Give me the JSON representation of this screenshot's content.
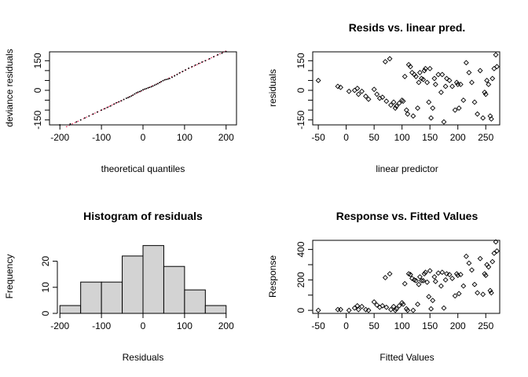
{
  "chart_data": [
    {
      "id": "qq",
      "type": "scatter",
      "title": "",
      "xlabel": "theoretical quantiles",
      "ylabel": "deviance residuals",
      "xlim": [
        -225,
        225
      ],
      "ylim": [
        -175,
        195
      ],
      "xticks": [
        -200,
        -100,
        0,
        100,
        200
      ],
      "yticks": [
        -150,
        -100,
        -50,
        0,
        50,
        100,
        150
      ],
      "yticklabels": [
        "-150",
        "",
        "",
        "0",
        "",
        "",
        "150"
      ],
      "reference_line": {
        "color": "#e0003a",
        "from": [
          -185,
          -185
        ],
        "to": [
          200,
          200
        ]
      },
      "series": [
        {
          "x": [
            -200,
            -175,
            -160,
            -150,
            -140,
            -130,
            -120,
            -110,
            -100,
            -92,
            -85,
            -78,
            -70,
            -64,
            -58,
            -52,
            -46,
            -40,
            -36,
            -32,
            -28,
            -24,
            -20,
            -16,
            -12,
            -8,
            -4,
            0,
            4,
            8,
            12,
            16,
            20,
            24,
            28,
            32,
            36,
            40,
            44,
            48,
            52,
            56,
            60,
            64,
            70,
            76,
            82,
            88,
            95,
            102,
            110,
            118,
            126,
            134,
            142,
            150,
            160,
            170,
            180,
            190,
            200
          ],
          "y": [
            -175,
            -170,
            -160,
            -150,
            -140,
            -130,
            -120,
            -110,
            -100,
            -93,
            -86,
            -79,
            -70,
            -63,
            -58,
            -53,
            -46,
            -40,
            -37,
            -33,
            -29,
            -24,
            -18,
            -13,
            -9,
            -6,
            -2,
            3,
            6,
            9,
            12,
            15,
            18,
            22,
            26,
            30,
            34,
            39,
            44,
            49,
            53,
            55,
            57,
            60,
            66,
            73,
            80,
            88,
            95,
            103,
            112,
            120,
            128,
            136,
            143,
            150,
            160,
            170,
            180,
            188,
            196
          ]
        }
      ]
    },
    {
      "id": "resid",
      "type": "scatter",
      "title": "Resids vs. linear pred.",
      "xlabel": "linear predictor",
      "ylabel": "residuals",
      "xlim": [
        -60,
        275
      ],
      "ylim": [
        -175,
        195
      ],
      "xticks": [
        -50,
        0,
        50,
        100,
        150,
        200,
        250
      ],
      "yticks": [
        -150,
        -100,
        -50,
        0,
        50,
        100,
        150
      ],
      "yticklabels": [
        "-150",
        "",
        "",
        "0",
        "",
        "",
        "150"
      ],
      "series": [
        {
          "x": [
            -50,
            -15,
            -10,
            5,
            15,
            20,
            22,
            28,
            35,
            40,
            50,
            55,
            60,
            65,
            70,
            72,
            78,
            80,
            85,
            88,
            90,
            95,
            100,
            102,
            105,
            108,
            110,
            112,
            115,
            118,
            120,
            122,
            125,
            128,
            130,
            132,
            135,
            138,
            140,
            142,
            145,
            148,
            150,
            152,
            155,
            158,
            160,
            165,
            170,
            172,
            175,
            178,
            180,
            185,
            190,
            195,
            198,
            200,
            202,
            205,
            210,
            215,
            220,
            225,
            230,
            235,
            240,
            245,
            248,
            250,
            252,
            255,
            258,
            260,
            262,
            265,
            268,
            270
          ],
          "y": [
            50,
            20,
            15,
            -5,
            0,
            10,
            -20,
            -5,
            -30,
            -45,
            5,
            -20,
            -40,
            -35,
            145,
            -55,
            160,
            -75,
            -60,
            -90,
            -80,
            -65,
            -50,
            -55,
            70,
            -100,
            -120,
            130,
            120,
            90,
            -130,
            80,
            70,
            -90,
            40,
            90,
            60,
            55,
            100,
            110,
            40,
            -60,
            110,
            -140,
            -90,
            60,
            30,
            80,
            -10,
            80,
            -160,
            20,
            60,
            50,
            20,
            -100,
            40,
            30,
            -90,
            30,
            -50,
            140,
            90,
            40,
            -60,
            -120,
            100,
            -140,
            -10,
            -20,
            50,
            30,
            -130,
            -145,
            60,
            110,
            180,
            120
          ]
        }
      ]
    },
    {
      "id": "hist",
      "type": "bar",
      "title": "Histogram of residuals",
      "xlabel": "Residuals",
      "ylabel": "Frequency",
      "xlim": [
        -225,
        225
      ],
      "ylim": [
        0,
        28
      ],
      "xticks": [
        -200,
        -100,
        0,
        100,
        200
      ],
      "yticks": [
        0,
        10,
        20
      ],
      "bins": [
        [
          -200,
          -150
        ],
        [
          -150,
          -100
        ],
        [
          -100,
          -50
        ],
        [
          -50,
          0
        ],
        [
          0,
          50
        ],
        [
          50,
          100
        ],
        [
          100,
          150
        ],
        [
          150,
          200
        ]
      ],
      "values": [
        3,
        12,
        12,
        22,
        26,
        18,
        9,
        3
      ]
    },
    {
      "id": "resp",
      "type": "scatter",
      "title": "Response vs. Fitted Values",
      "xlabel": "Fitted Values",
      "ylabel": "Response",
      "xlim": [
        -60,
        275
      ],
      "ylim": [
        -20,
        460
      ],
      "xticks": [
        -50,
        0,
        50,
        100,
        150,
        200,
        250
      ],
      "yticks": [
        0,
        100,
        200,
        300,
        400
      ],
      "yticklabels": [
        "0",
        "",
        "200",
        "",
        "400"
      ],
      "series": [
        {
          "x": [
            -50,
            -15,
            -10,
            5,
            15,
            20,
            22,
            28,
            35,
            40,
            50,
            55,
            60,
            65,
            70,
            72,
            78,
            80,
            85,
            88,
            90,
            95,
            100,
            102,
            105,
            108,
            110,
            112,
            115,
            118,
            120,
            122,
            125,
            128,
            130,
            132,
            135,
            138,
            140,
            142,
            145,
            148,
            150,
            152,
            155,
            158,
            160,
            165,
            170,
            172,
            175,
            178,
            180,
            185,
            190,
            195,
            198,
            200,
            202,
            205,
            210,
            215,
            220,
            225,
            230,
            235,
            240,
            245,
            248,
            250,
            252,
            255,
            258,
            260,
            262,
            265,
            268,
            270
          ],
          "y": [
            0,
            5,
            5,
            0,
            15,
            30,
            5,
            25,
            5,
            0,
            55,
            35,
            20,
            30,
            215,
            20,
            240,
            5,
            25,
            0,
            10,
            30,
            50,
            40,
            175,
            10,
            0,
            240,
            235,
            210,
            0,
            200,
            195,
            40,
            170,
            220,
            195,
            195,
            240,
            250,
            185,
            90,
            260,
            10,
            65,
            220,
            190,
            245,
            160,
            250,
            15,
            200,
            240,
            235,
            210,
            95,
            240,
            230,
            110,
            235,
            160,
            355,
            310,
            265,
            170,
            115,
            340,
            105,
            240,
            230,
            300,
            285,
            130,
            115,
            320,
            375,
            450,
            390
          ]
        }
      ]
    }
  ]
}
